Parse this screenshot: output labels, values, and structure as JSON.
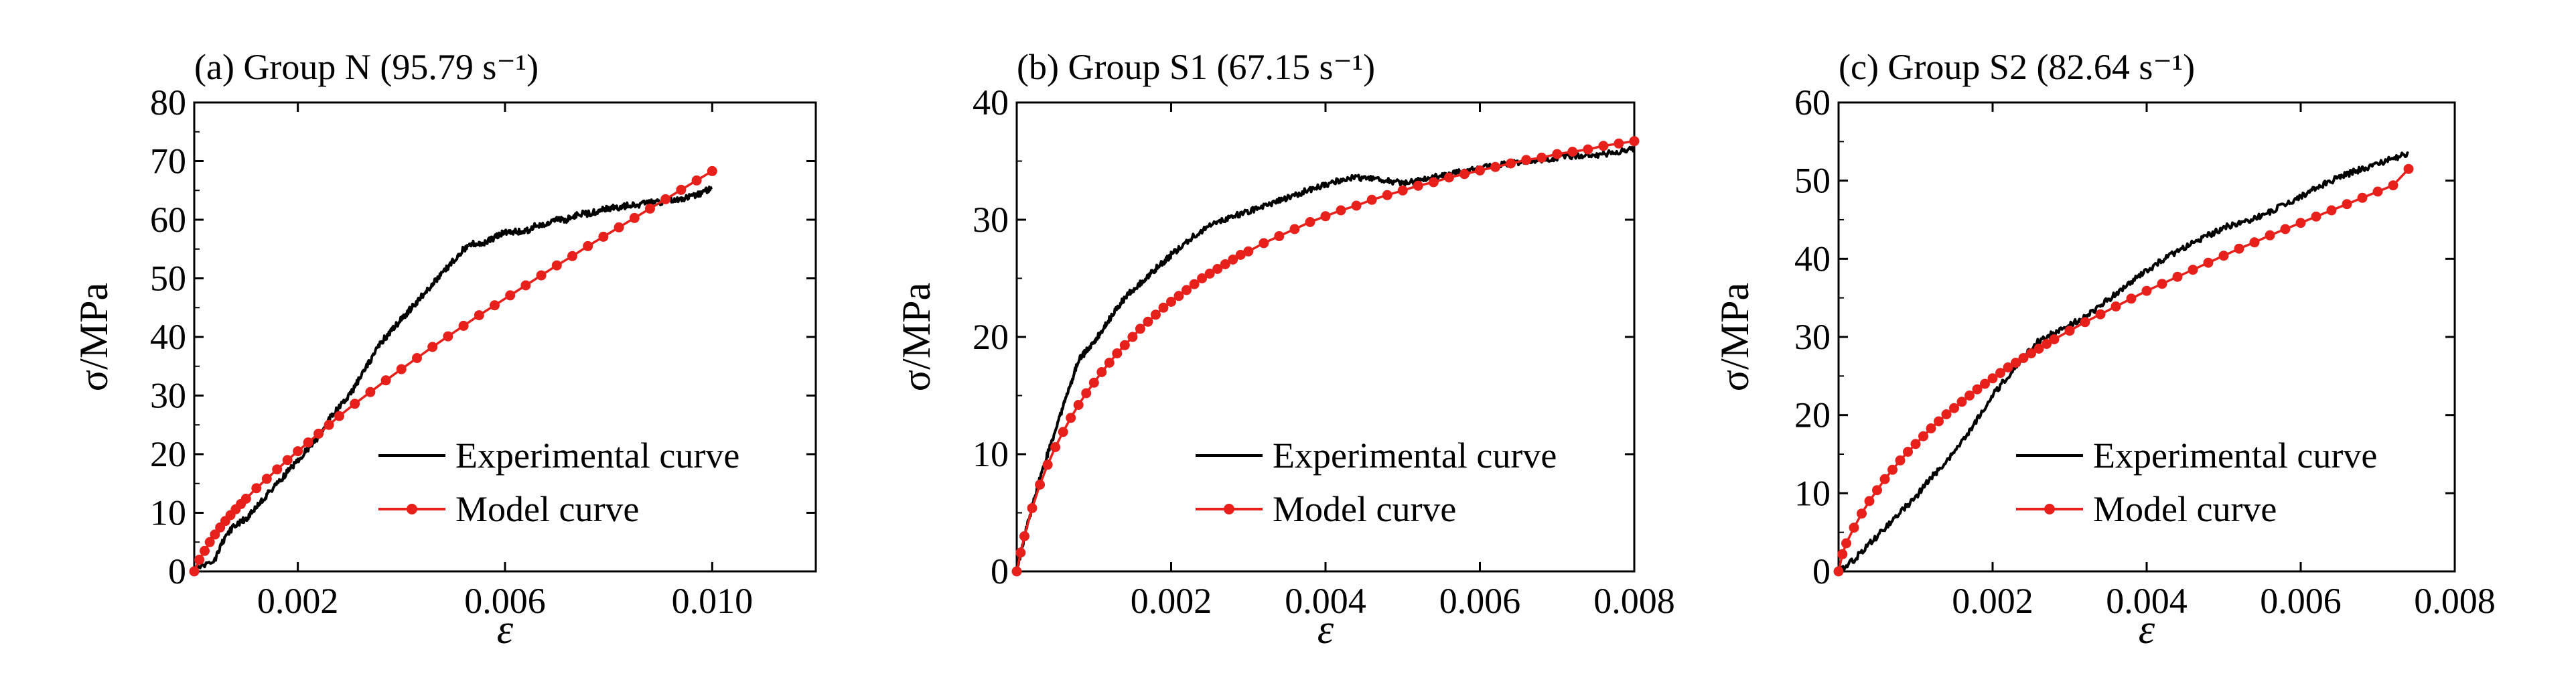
{
  "figure": {
    "panels": [
      {
        "title": "(a) Group N (95.79 s⁻¹)",
        "xlabel": "ε",
        "ylabel": "σ/MPa"
      },
      {
        "title": "(b) Group S1 (67.15 s⁻¹)",
        "xlabel": "ε",
        "ylabel": "σ/MPa"
      },
      {
        "title": "(c) Group S2 (82.64 s⁻¹)",
        "xlabel": "ε",
        "ylabel": "σ/MPa"
      }
    ]
  },
  "colors": {
    "experimental": "#000000",
    "model": "#e8201c"
  },
  "chart_data": [
    {
      "type": "line",
      "title": "(a) Group N (95.79 s⁻¹)",
      "xlabel": "ε",
      "ylabel": "σ/MPa",
      "xlim": [
        0,
        0.012
      ],
      "ylim": [
        0,
        80
      ],
      "xticks": [
        0.002,
        0.006,
        0.01
      ],
      "xtick_labels": [
        "0.002",
        "0.006",
        "0.010"
      ],
      "yticks": [
        0,
        10,
        20,
        30,
        40,
        50,
        60,
        70,
        80
      ],
      "ytick_labels": [
        "0",
        "10",
        "20",
        "30",
        "40",
        "50",
        "60",
        "70",
        "80"
      ],
      "grid": false,
      "legend_position": "bottom-right",
      "series": [
        {
          "name": "Experimental curve",
          "style": "noisy-line",
          "x": [
            0,
            0.0004,
            0.0006,
            0.0008,
            0.001,
            0.0012,
            0.0014,
            0.0016,
            0.0018,
            0.002,
            0.0022,
            0.0024,
            0.0026,
            0.0028,
            0.003,
            0.0032,
            0.0034,
            0.0036,
            0.0038,
            0.004,
            0.0042,
            0.0044,
            0.0046,
            0.0048,
            0.005,
            0.0052,
            0.0054,
            0.0056,
            0.0058,
            0.006,
            0.0062,
            0.0064,
            0.0066,
            0.0068,
            0.007,
            0.0072,
            0.0074,
            0.0076,
            0.0078,
            0.008,
            0.0082,
            0.0084,
            0.0086,
            0.0088,
            0.009,
            0.0092,
            0.0094,
            0.0096,
            0.0098,
            0.01
          ],
          "y": [
            0,
            2,
            6,
            8,
            9,
            11,
            13,
            15,
            17,
            19,
            21,
            23,
            26,
            28,
            30,
            33,
            36,
            39,
            41,
            43,
            45,
            47,
            49,
            51,
            53,
            55,
            56,
            56,
            57,
            58,
            58,
            58,
            59,
            59,
            60,
            60,
            61,
            61,
            61.5,
            62,
            62,
            62.5,
            62.5,
            63,
            63,
            63.5,
            63.5,
            64,
            64.5,
            65.5
          ]
        },
        {
          "name": "Model curve",
          "style": "line-markers",
          "x": [
            0,
            0.0001,
            0.0002,
            0.0003,
            0.0004,
            0.0005,
            0.0006,
            0.0007,
            0.0008,
            0.0009,
            0.001,
            0.0012,
            0.0014,
            0.0016,
            0.0018,
            0.002,
            0.0022,
            0.0024,
            0.0026,
            0.0028,
            0.0031,
            0.0034,
            0.0037,
            0.004,
            0.0043,
            0.0046,
            0.0049,
            0.0052,
            0.0055,
            0.0058,
            0.0061,
            0.0064,
            0.0067,
            0.007,
            0.0073,
            0.0076,
            0.0079,
            0.0082,
            0.0085,
            0.0088,
            0.0091,
            0.0094,
            0.0097,
            0.01
          ],
          "y": [
            0,
            2,
            3.5,
            5,
            6.3,
            7.5,
            8.6,
            9.6,
            10.6,
            11.5,
            12.4,
            14.2,
            15.8,
            17.4,
            19,
            20.5,
            22,
            23.5,
            25,
            26.5,
            28.6,
            30.6,
            32.6,
            34.5,
            36.4,
            38.3,
            40.1,
            41.9,
            43.7,
            45.4,
            47.1,
            48.8,
            50.5,
            52.2,
            53.8,
            55.5,
            57.1,
            58.7,
            60.3,
            61.9,
            63.5,
            65.1,
            66.7,
            68.3
          ]
        }
      ]
    },
    {
      "type": "line",
      "title": "(b) Group S1 (67.15 s⁻¹)",
      "xlabel": "ε",
      "ylabel": "σ/MPa",
      "xlim": [
        0,
        0.008
      ],
      "ylim": [
        0,
        40
      ],
      "xticks": [
        0.002,
        0.004,
        0.006,
        0.008
      ],
      "xtick_labels": [
        "0.002",
        "0.004",
        "0.006",
        "0.008"
      ],
      "yticks": [
        0,
        10,
        20,
        30,
        40
      ],
      "ytick_labels": [
        "0",
        "10",
        "20",
        "30",
        "40"
      ],
      "grid": false,
      "legend_position": "bottom-right",
      "series": [
        {
          "name": "Experimental curve",
          "style": "noisy-line",
          "x": [
            0,
            0.0001,
            0.0002,
            0.0003,
            0.0004,
            0.0005,
            0.0006,
            0.0007,
            0.0008,
            0.0009,
            0.001,
            0.0011,
            0.0012,
            0.0013,
            0.0014,
            0.0015,
            0.0016,
            0.0017,
            0.0018,
            0.0019,
            0.002,
            0.0022,
            0.0024,
            0.0026,
            0.0028,
            0.003,
            0.0032,
            0.0034,
            0.0036,
            0.0038,
            0.004,
            0.0042,
            0.0044,
            0.0046,
            0.0048,
            0.005,
            0.0052,
            0.0054,
            0.0056,
            0.0058,
            0.006,
            0.0062,
            0.0064,
            0.0066,
            0.0068,
            0.007,
            0.0072,
            0.0074,
            0.0076,
            0.0078,
            0.008
          ],
          "y": [
            0,
            3,
            5.5,
            8,
            10,
            12,
            14,
            16,
            18,
            18.8,
            19.5,
            20.5,
            21.5,
            22.5,
            23.3,
            24,
            24.6,
            25.2,
            25.8,
            26.4,
            27,
            28.1,
            29.1,
            29.8,
            30.3,
            30.7,
            31.1,
            31.6,
            32.1,
            32.6,
            33,
            33.4,
            33.6,
            33.5,
            33.3,
            33.1,
            33.3,
            33.6,
            33.9,
            34.1,
            34.4,
            34.6,
            34.8,
            35,
            35.1,
            35.3,
            35.4,
            35.5,
            35.6,
            35.8,
            36
          ]
        },
        {
          "name": "Model curve",
          "style": "line-markers",
          "x": [
            0,
            5e-05,
            0.0001,
            0.0002,
            0.0003,
            0.0004,
            0.0005,
            0.0006,
            0.0007,
            0.0008,
            0.0009,
            0.001,
            0.0011,
            0.0012,
            0.0013,
            0.0014,
            0.0015,
            0.0016,
            0.0017,
            0.0018,
            0.0019,
            0.002,
            0.0021,
            0.0022,
            0.0023,
            0.0024,
            0.0025,
            0.0026,
            0.0027,
            0.0028,
            0.0029,
            0.003,
            0.0032,
            0.0034,
            0.0036,
            0.0038,
            0.004,
            0.0042,
            0.0044,
            0.0046,
            0.0048,
            0.005,
            0.0052,
            0.0054,
            0.0056,
            0.0058,
            0.006,
            0.0062,
            0.0064,
            0.0066,
            0.0068,
            0.007,
            0.0072,
            0.0074,
            0.0076,
            0.0078,
            0.008
          ],
          "y": [
            0,
            1.6,
            3,
            5.4,
            7.4,
            9.1,
            10.6,
            11.9,
            13.1,
            14.2,
            15.2,
            16.1,
            17,
            17.8,
            18.6,
            19.3,
            20,
            20.7,
            21.3,
            21.9,
            22.5,
            23,
            23.5,
            24,
            24.5,
            25,
            25.4,
            25.8,
            26.2,
            26.6,
            27,
            27.3,
            28,
            28.6,
            29.2,
            29.8,
            30.3,
            30.8,
            31.2,
            31.7,
            32.1,
            32.5,
            32.9,
            33.2,
            33.6,
            33.9,
            34.2,
            34.5,
            34.8,
            35.1,
            35.3,
            35.6,
            35.8,
            36,
            36.3,
            36.5,
            36.7
          ]
        }
      ]
    },
    {
      "type": "line",
      "title": "(c) Group S2 (82.64 s⁻¹)",
      "xlabel": "ε",
      "ylabel": "σ/MPa",
      "xlim": [
        0,
        0.008
      ],
      "ylim": [
        0,
        60
      ],
      "xticks": [
        0.002,
        0.004,
        0.006,
        0.008
      ],
      "xtick_labels": [
        "0.002",
        "0.004",
        "0.006",
        "0.008"
      ],
      "yticks": [
        0,
        10,
        20,
        30,
        40,
        50,
        60
      ],
      "ytick_labels": [
        "0",
        "10",
        "20",
        "30",
        "40",
        "50",
        "60"
      ],
      "grid": false,
      "legend_position": "bottom-right",
      "series": [
        {
          "name": "Experimental curve",
          "style": "noisy-line",
          "x": [
            0,
            0.0002,
            0.0004,
            0.0006,
            0.0008,
            0.001,
            0.0012,
            0.0014,
            0.0016,
            0.0018,
            0.002,
            0.0022,
            0.0024,
            0.0026,
            0.0028,
            0.003,
            0.0032,
            0.0034,
            0.0036,
            0.0038,
            0.004,
            0.0042,
            0.0044,
            0.0046,
            0.0048,
            0.005,
            0.0052,
            0.0054,
            0.0056,
            0.0058,
            0.006,
            0.0062,
            0.0064,
            0.0066,
            0.0068,
            0.007,
            0.0072,
            0.0074
          ],
          "y": [
            0,
            1.5,
            3.5,
            5.5,
            7.5,
            9.5,
            12,
            14,
            16.5,
            19.5,
            22.5,
            25,
            27.5,
            29.5,
            30.5,
            31.5,
            32.5,
            34,
            35.5,
            37,
            38.5,
            39.8,
            41,
            42,
            43,
            44,
            44.5,
            45.2,
            46,
            47,
            48,
            49,
            50,
            50.8,
            51.5,
            52.2,
            52.8,
            53.5
          ]
        },
        {
          "name": "Model curve",
          "style": "line-markers",
          "x": [
            0,
            5e-05,
            0.0001,
            0.0002,
            0.0003,
            0.0004,
            0.0005,
            0.0006,
            0.0007,
            0.0008,
            0.0009,
            0.001,
            0.0011,
            0.0012,
            0.0013,
            0.0014,
            0.0015,
            0.0016,
            0.0017,
            0.0018,
            0.0019,
            0.002,
            0.0021,
            0.0022,
            0.0023,
            0.0024,
            0.0025,
            0.0026,
            0.0027,
            0.0028,
            0.003,
            0.0032,
            0.0034,
            0.0036,
            0.0038,
            0.004,
            0.0042,
            0.0044,
            0.0046,
            0.0048,
            0.005,
            0.0052,
            0.0054,
            0.0056,
            0.0058,
            0.006,
            0.0062,
            0.0064,
            0.0066,
            0.0068,
            0.007,
            0.0072,
            0.0074
          ],
          "y": [
            0,
            2.2,
            3.6,
            5.6,
            7.4,
            9,
            10.4,
            11.8,
            13,
            14.2,
            15.3,
            16.3,
            17.3,
            18.3,
            19.2,
            20.1,
            20.9,
            21.7,
            22.5,
            23.3,
            24,
            24.7,
            25.4,
            26.1,
            26.7,
            27.3,
            27.9,
            28.5,
            29.1,
            29.7,
            30.8,
            31.9,
            32.9,
            33.9,
            34.9,
            35.9,
            36.8,
            37.7,
            38.6,
            39.5,
            40.4,
            41.3,
            42.1,
            43,
            43.8,
            44.6,
            45.4,
            46.2,
            47,
            47.8,
            48.6,
            49.4,
            51.5
          ]
        }
      ]
    }
  ]
}
